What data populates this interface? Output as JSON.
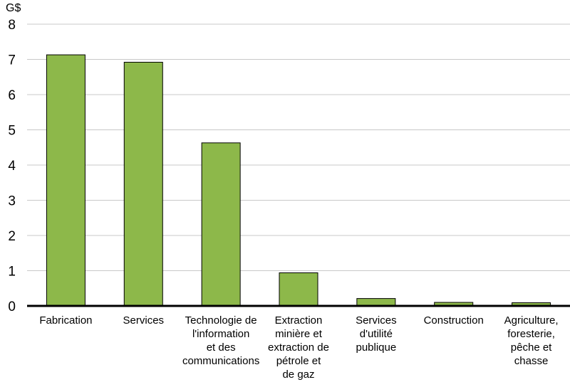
{
  "chart_data": {
    "type": "bar",
    "unit_label": "G$",
    "categories": [
      [
        "Fabrication"
      ],
      [
        "Services"
      ],
      [
        "Technologie de",
        "l'information",
        "et des",
        "communications"
      ],
      [
        "Extraction",
        "minière et",
        "extraction de",
        "pétrole et",
        "de gaz"
      ],
      [
        "Services",
        "d'utilité",
        "publique"
      ],
      [
        "Construction"
      ],
      [
        "Agriculture,",
        "foresterie,",
        "pêche et",
        "chasse"
      ]
    ],
    "values": [
      7.13,
      6.92,
      4.63,
      0.94,
      0.21,
      0.1,
      0.09
    ],
    "ylim": [
      0,
      8
    ],
    "yticks": [
      "0",
      "1",
      "2",
      "3",
      "4",
      "5",
      "6",
      "7",
      "8"
    ],
    "grid": true,
    "bar_color": "#8db84a",
    "bar_edge_color": "#000000",
    "grid_color": "#c8c8c8",
    "title": "",
    "xlabel": "",
    "ylabel": ""
  }
}
